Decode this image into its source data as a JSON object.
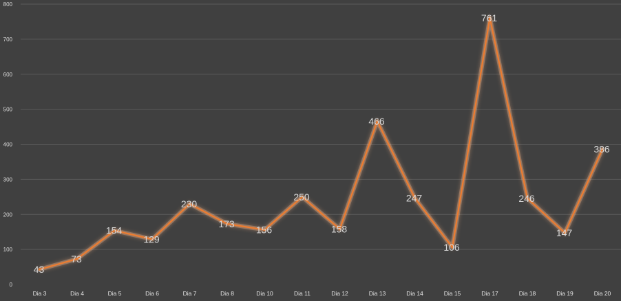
{
  "chart_data": {
    "type": "line",
    "title": "",
    "xlabel": "",
    "ylabel": "",
    "ylim": [
      0,
      800
    ],
    "yticks": [
      0,
      100,
      200,
      300,
      400,
      500,
      600,
      700,
      800
    ],
    "grid": true,
    "legend": "none",
    "categories": [
      "Dia 3",
      "Dia 4",
      "Dia 5",
      "Dia 6",
      "Dia 7",
      "Dia 8",
      "Dia 10",
      "Dia 11",
      "Dia 12",
      "Dia 13",
      "Dia 14",
      "Dia 15",
      "Dia 17",
      "Dia 18",
      "Dia 19",
      "Dia 20"
    ],
    "series": [
      {
        "values": [
          43,
          73,
          154,
          129,
          230,
          173,
          156,
          250,
          158,
          466,
          247,
          106,
          761,
          246,
          147,
          386
        ],
        "color": "#ed7d31"
      }
    ],
    "colors": {
      "background": "#404040",
      "grid": "#5a5a5a",
      "text": "#d9d9d9",
      "line": "#ed7d31",
      "glow": "#f4b183"
    }
  }
}
